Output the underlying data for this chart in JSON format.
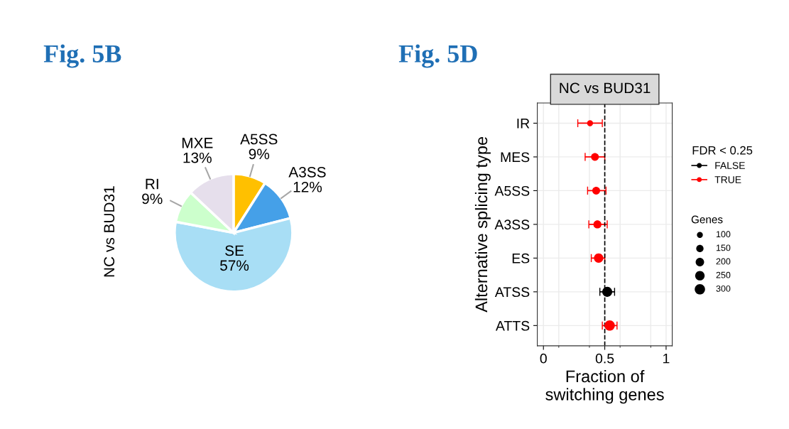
{
  "chart_data": [
    {
      "type": "pie",
      "title": "Fig. 5B",
      "ylabel": "NC vs BUD31",
      "categories": [
        "A5SS",
        "A3SS",
        "SE",
        "RI",
        "MXE"
      ],
      "values": [
        9,
        12,
        57,
        9,
        13
      ],
      "colors": [
        "#ffc000",
        "#45a0e8",
        "#a8def5",
        "#ccffcc",
        "#e6dfec"
      ],
      "value_labels": [
        "9%",
        "12%",
        "57%",
        "9%",
        "13%"
      ],
      "legend": false
    },
    {
      "type": "scatter",
      "orientation": "horizontal",
      "title": "Fig. 5D",
      "subtitle": "NC vs BUD31",
      "xlabel": "Fraction of\nswitching genes",
      "ylabel": "Alternative splicing type",
      "legend_title": "FDR < 0.25",
      "legend": "right",
      "grid": true,
      "marker": "circle",
      "categories": [
        "IR",
        "MES",
        "A5SS",
        "A3SS",
        "ES",
        "ATSS",
        "ATTS"
      ],
      "xlim": [
        -0.05,
        1.05
      ],
      "xticks": [
        0,
        0.5,
        1
      ],
      "series": [
        {
          "name": "FALSE",
          "color": "#000000",
          "values": [
            null,
            null,
            null,
            null,
            null,
            0.52,
            null
          ],
          "errors": [
            null,
            null,
            null,
            null,
            null,
            [
              0.46,
              0.58
            ],
            null
          ],
          "sizes": [
            null,
            null,
            null,
            null,
            null,
            280,
            null
          ]
        },
        {
          "name": "TRUE",
          "color": "#ff0000",
          "values": [
            0.38,
            0.42,
            0.43,
            0.44,
            0.45,
            null,
            0.54
          ],
          "errors": [
            [
              0.28,
              0.48
            ],
            [
              0.34,
              0.5
            ],
            [
              0.36,
              0.51
            ],
            [
              0.37,
              0.52
            ],
            [
              0.39,
              0.5
            ],
            null,
            [
              0.48,
              0.6
            ]
          ],
          "sizes": [
            100,
            170,
            170,
            180,
            250,
            null,
            300
          ]
        }
      ],
      "size_legend": [
        100,
        150,
        200,
        250,
        300
      ],
      "annotations": [
        "Genes"
      ],
      "ref_lines": [
        {
          "axis": "x",
          "value": 0.5,
          "line_style": "dashed",
          "color": "#000000"
        }
      ]
    }
  ]
}
